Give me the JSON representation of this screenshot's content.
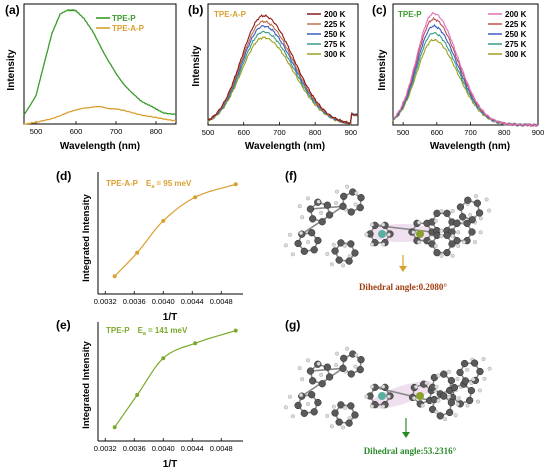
{
  "chart_data": [
    {
      "panel": "(a)",
      "type": "line",
      "xlabel": "Wavelength (nm)",
      "ylabel": "Intensity",
      "xlim": [
        470,
        850
      ],
      "xticks": [
        500,
        600,
        700,
        800
      ],
      "series": [
        {
          "name": "TPE-P",
          "color": "#3a9a2a",
          "x": [
            470,
            500,
            520,
            540,
            560,
            580,
            590,
            600,
            620,
            640,
            660,
            680,
            700,
            720,
            740,
            760,
            780,
            800,
            820,
            850
          ],
          "y": [
            0.08,
            0.25,
            0.52,
            0.8,
            0.96,
            1.0,
            1.0,
            0.99,
            0.93,
            0.82,
            0.69,
            0.56,
            0.44,
            0.35,
            0.27,
            0.21,
            0.17,
            0.13,
            0.1,
            0.08
          ]
        },
        {
          "name": "TPE-A-P",
          "color": "#d9a030",
          "x": [
            470,
            500,
            540,
            580,
            620,
            640,
            660,
            680,
            700,
            740,
            780,
            820,
            850
          ],
          "y": [
            0.0,
            0.01,
            0.05,
            0.1,
            0.14,
            0.15,
            0.15,
            0.14,
            0.13,
            0.1,
            0.07,
            0.04,
            0.03
          ]
        }
      ]
    },
    {
      "panel": "(b)",
      "type": "line",
      "annotation": "TPE-A-P",
      "xlabel": "Wavelength (nm)",
      "ylabel": "Intensity",
      "xlim": [
        500,
        920
      ],
      "xticks": [
        500,
        600,
        700,
        800,
        900
      ],
      "peak_x": 655,
      "series": [
        {
          "name": "200 K",
          "color": "#8b1a1a",
          "peak": 0.95
        },
        {
          "name": "225 K",
          "color": "#c0704a",
          "peak": 0.9
        },
        {
          "name": "250 K",
          "color": "#3a5ec0",
          "peak": 0.86
        },
        {
          "name": "275 K",
          "color": "#3a9a8a",
          "peak": 0.81
        },
        {
          "name": "300 K",
          "color": "#a0a020",
          "peak": 0.76
        }
      ]
    },
    {
      "panel": "(c)",
      "type": "line",
      "annotation": "TPE-P",
      "xlabel": "Wavelength (nm)",
      "ylabel": "Intensity",
      "xlim": [
        470,
        900
      ],
      "xticks": [
        500,
        600,
        700,
        800,
        900
      ],
      "peak_x": 590,
      "series": [
        {
          "name": "200 K",
          "color": "#e070c0",
          "peak": 0.97
        },
        {
          "name": "225 K",
          "color": "#c05050",
          "peak": 0.92
        },
        {
          "name": "250 K",
          "color": "#3a5ec0",
          "peak": 0.86
        },
        {
          "name": "275 K",
          "color": "#3a9a8a",
          "peak": 0.8
        },
        {
          "name": "300 K",
          "color": "#a0a020",
          "peak": 0.74
        }
      ]
    },
    {
      "panel": "(d)",
      "type": "scatter",
      "annotation": "TPE-A-P",
      "ea_symbol": "E",
      "ea_subscript": "a",
      "ea_value": "= 95 meV",
      "xlabel": "1/T",
      "ylabel": "Integrated Intensity",
      "xlim": [
        0.0031,
        0.0051
      ],
      "xticks": [
        "0.0032",
        "0.0036",
        "0.0040",
        "0.0044",
        "0.0048"
      ],
      "color": "#d9a030",
      "x": [
        0.00333,
        0.00364,
        0.004,
        0.00444,
        0.005
      ],
      "y": [
        0.15,
        0.35,
        0.62,
        0.82,
        0.93
      ]
    },
    {
      "panel": "(e)",
      "type": "scatter",
      "annotation": "TPE-P",
      "ea_symbol": "E",
      "ea_subscript": "a",
      "ea_value": "= 141 meV",
      "xlabel": "1/T",
      "ylabel": "Integrated Intensity",
      "xlim": [
        0.0031,
        0.0051
      ],
      "xticks": [
        "0.0032",
        "0.0036",
        "0.0040",
        "0.0044",
        "0.0048"
      ],
      "color": "#7aaa2a",
      "x": [
        0.00333,
        0.00364,
        0.004,
        0.00444,
        0.005
      ],
      "y": [
        0.12,
        0.4,
        0.72,
        0.85,
        0.96
      ]
    }
  ],
  "panels": {
    "f": {
      "label": "(f)",
      "caption": "Dihedral angle:0.2080°",
      "color": "#a04010"
    },
    "g": {
      "label": "(g)",
      "caption": "Dihedral angle:53.2316°",
      "color": "#2a8a2a"
    }
  }
}
